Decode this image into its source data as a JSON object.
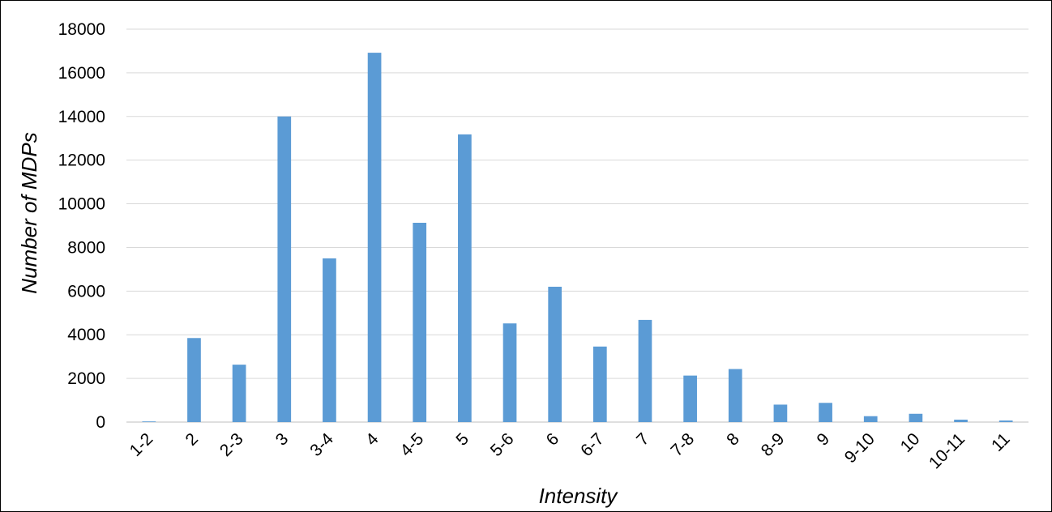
{
  "chart_data": {
    "type": "bar",
    "title": "",
    "xlabel": "Intensity",
    "ylabel": "Number of MDPs",
    "ylim": [
      0,
      18000
    ],
    "yticks": [
      0,
      2000,
      4000,
      6000,
      8000,
      10000,
      12000,
      14000,
      16000,
      18000
    ],
    "grid": true,
    "legend": "none",
    "bar_color": "#5B9BD5",
    "grid_color": "#D9D9D9",
    "categories": [
      "1-2",
      "2",
      "2-3",
      "3",
      "3-4",
      "4",
      "4-5",
      "5",
      "5-6",
      "6",
      "6-7",
      "7",
      "7-8",
      "8",
      "8-9",
      "9",
      "9-10",
      "10",
      "10-11",
      "11"
    ],
    "values": [
      30,
      3850,
      2630,
      14000,
      7500,
      16920,
      9130,
      13180,
      4520,
      6200,
      3460,
      4680,
      2130,
      2430,
      800,
      880,
      270,
      380,
      110,
      70
    ]
  }
}
